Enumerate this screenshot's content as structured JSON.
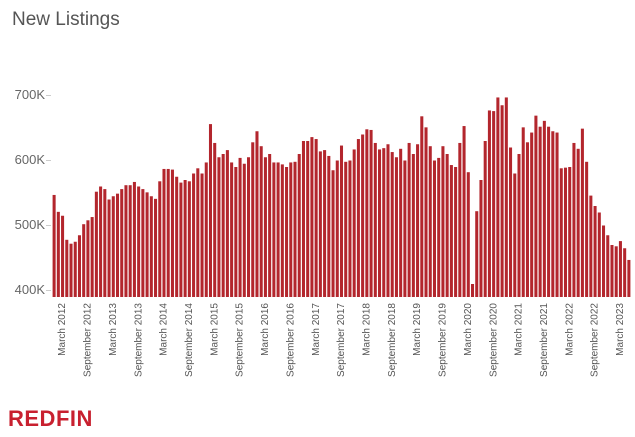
{
  "chart_data": {
    "type": "bar",
    "title": "New Listings",
    "brand": "REDFIN",
    "color": "#b3262d",
    "categories": [
      null,
      null,
      "March 2012",
      null,
      null,
      null,
      null,
      null,
      "September 2012",
      null,
      null,
      null,
      null,
      null,
      "March 2013",
      null,
      null,
      null,
      null,
      null,
      "September 2013",
      null,
      null,
      null,
      null,
      null,
      "March 2014",
      null,
      null,
      null,
      null,
      null,
      "September 2014",
      null,
      null,
      null,
      null,
      null,
      "March 2015",
      null,
      null,
      null,
      null,
      null,
      "September 2015",
      null,
      null,
      null,
      null,
      null,
      "March 2016",
      null,
      null,
      null,
      null,
      null,
      "September 2016",
      null,
      null,
      null,
      null,
      null,
      "March 2017",
      null,
      null,
      null,
      null,
      null,
      "September 2017",
      null,
      null,
      null,
      null,
      null,
      "March 2018",
      null,
      null,
      null,
      null,
      null,
      "September 2018",
      null,
      null,
      null,
      null,
      null,
      "March 2019",
      null,
      null,
      null,
      null,
      null,
      "September 2019",
      null,
      null,
      null,
      null,
      null,
      "March 2020",
      null,
      null,
      null,
      null,
      null,
      "September 2020",
      null,
      null,
      null,
      null,
      null,
      "March 2021",
      null,
      null,
      null,
      null,
      null,
      "September 2021",
      null,
      null,
      null,
      null,
      null,
      "March 2022",
      null,
      null,
      null,
      null,
      null,
      "September 2022",
      null,
      null,
      null,
      null,
      null,
      "March 2023",
      null,
      null
    ],
    "values": [
      547000,
      521000,
      515000,
      478000,
      472000,
      475000,
      485000,
      502000,
      508000,
      513000,
      552000,
      560000,
      556000,
      540000,
      545000,
      549000,
      556000,
      562000,
      562000,
      567000,
      560000,
      556000,
      551000,
      545000,
      541000,
      568000,
      587000,
      587000,
      586000,
      575000,
      566000,
      570000,
      568000,
      580000,
      588000,
      580000,
      597000,
      656000,
      627000,
      605000,
      610000,
      616000,
      597000,
      590000,
      604000,
      595000,
      605000,
      628000,
      645000,
      622000,
      605000,
      610000,
      597000,
      597000,
      594000,
      590000,
      597000,
      598000,
      610000,
      630000,
      630000,
      636000,
      633000,
      614000,
      616000,
      607000,
      585000,
      600000,
      623000,
      598000,
      600000,
      617000,
      633000,
      640000,
      648000,
      647000,
      627000,
      617000,
      619000,
      625000,
      613000,
      605000,
      618000,
      600000,
      627000,
      610000,
      625000,
      668000,
      651000,
      622000,
      600000,
      604000,
      622000,
      610000,
      593000,
      590000,
      627000,
      653000,
      582000,
      410000,
      522000,
      570000,
      630000,
      677000,
      676000,
      697000,
      685000,
      697000,
      620000,
      580000,
      610000,
      651000,
      628000,
      643000,
      669000,
      652000,
      661000,
      652000,
      645000,
      643000,
      588000,
      589000,
      590000,
      627000,
      618000,
      649000,
      598000,
      546000,
      530000,
      520000,
      500000,
      485000,
      470000,
      468000,
      476000,
      465000,
      447000
    ],
    "ylim": [
      390000,
      750000
    ],
    "yticks": [
      {
        "value": 400000,
        "label": "400K"
      },
      {
        "value": 500000,
        "label": "500K"
      },
      {
        "value": 600000,
        "label": "600K"
      },
      {
        "value": 700000,
        "label": "700K"
      }
    ],
    "grid": false
  }
}
